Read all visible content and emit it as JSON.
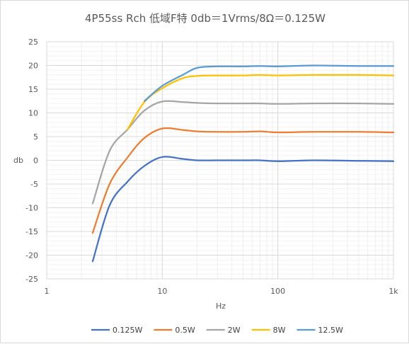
{
  "chart_data": {
    "type": "line",
    "title": "4P55ss Rch 低域F特 0db＝1Vrms/8Ω＝0.125W",
    "xlabel": "Hz",
    "ylabel": "db",
    "xscale": "log",
    "xlim": [
      1,
      1000
    ],
    "ylim": [
      -25,
      25
    ],
    "xticks": [
      1,
      10,
      100,
      1000
    ],
    "xtick_labels": [
      "1",
      "10",
      "100",
      "1k"
    ],
    "yticks": [
      -25,
      -20,
      -15,
      -10,
      -5,
      0,
      5,
      10,
      15,
      20,
      25
    ],
    "grid": true,
    "minor_grid": true,
    "legend_position": "bottom",
    "x": [
      2.5,
      3.5,
      5,
      7,
      10,
      15,
      20,
      30,
      50,
      70,
      100,
      200,
      500,
      1000
    ],
    "series": [
      {
        "name": "0.125W",
        "color": "#4472C4",
        "values": [
          -21.3,
          -9.5,
          -4.5,
          -1.2,
          0.7,
          0.3,
          0.0,
          0.0,
          0.0,
          0.0,
          -0.2,
          0.0,
          -0.1,
          -0.2
        ]
      },
      {
        "name": "0.5W",
        "color": "#ED7D31",
        "values": [
          -15.3,
          -5.0,
          0.6,
          4.7,
          6.7,
          6.4,
          6.1,
          6.0,
          6.0,
          6.1,
          5.9,
          6.0,
          6.0,
          5.9
        ]
      },
      {
        "name": "2W",
        "color": "#A5A5A5",
        "values": [
          -9.1,
          2.0,
          6.5,
          10.5,
          12.4,
          12.3,
          12.1,
          12.0,
          12.0,
          12.0,
          11.9,
          12.0,
          12.0,
          11.9
        ]
      },
      {
        "name": "8W",
        "color": "#FFC000",
        "values": [
          null,
          null,
          6.5,
          12.3,
          15.2,
          17.3,
          17.8,
          17.9,
          17.9,
          18.0,
          17.9,
          18.0,
          18.0,
          17.9
        ]
      },
      {
        "name": "12.5W",
        "color": "#5B9BD5",
        "values": [
          null,
          null,
          null,
          12.5,
          15.7,
          18.0,
          19.5,
          19.8,
          19.8,
          19.9,
          19.8,
          20.0,
          19.9,
          19.9
        ]
      }
    ]
  }
}
